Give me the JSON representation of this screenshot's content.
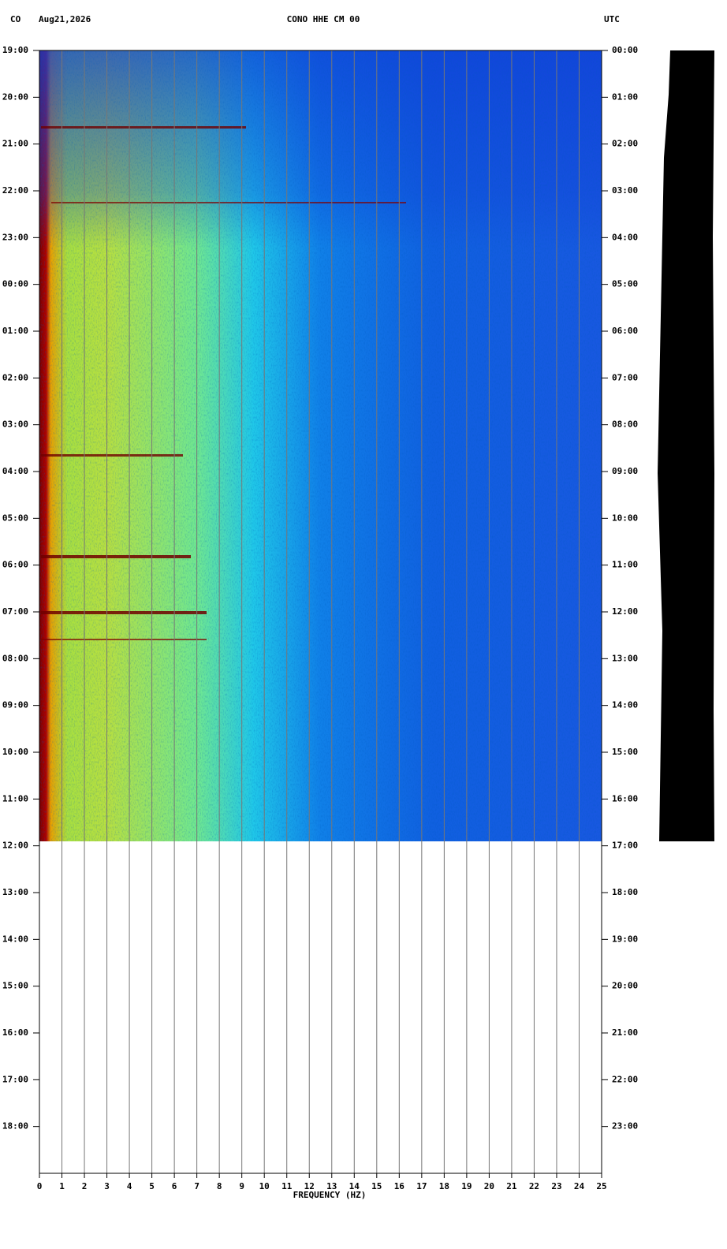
{
  "chart_data": {
    "type": "spectrogram",
    "network": "CO",
    "date": "Aug21,2026",
    "title": "CONO HHE CM 00",
    "timezone": "UTC",
    "xlabel": "FREQUENCY (HZ)",
    "xlim": [
      0,
      25
    ],
    "xticks": [
      0,
      1,
      2,
      3,
      4,
      5,
      6,
      7,
      8,
      9,
      10,
      11,
      12,
      13,
      14,
      15,
      16,
      17,
      18,
      19,
      20,
      21,
      22,
      23,
      24,
      25
    ],
    "ylim": [
      0,
      24
    ],
    "yticks": [
      {
        "value": 0,
        "label": "19:00"
      },
      {
        "value": 1,
        "label": "20:00"
      },
      {
        "value": 2,
        "label": "21:00"
      },
      {
        "value": 3,
        "label": "22:00"
      },
      {
        "value": 4,
        "label": "23:00"
      },
      {
        "value": 5,
        "label": "00:00"
      },
      {
        "value": 6,
        "label": "01:00"
      },
      {
        "value": 7,
        "label": "02:00"
      },
      {
        "value": 8,
        "label": "03:00"
      },
      {
        "value": 9,
        "label": "04:00"
      },
      {
        "value": 10,
        "label": "05:00"
      },
      {
        "value": 11,
        "label": "06:00"
      },
      {
        "value": 12,
        "label": "07:00"
      },
      {
        "value": 13,
        "label": "08:00"
      },
      {
        "value": 14,
        "label": "09:00"
      },
      {
        "value": 15,
        "label": "10:00"
      },
      {
        "value": 16,
        "label": "11:00"
      },
      {
        "value": 17,
        "label": "12:00"
      },
      {
        "value": 18,
        "label": "13:00"
      },
      {
        "value": 19,
        "label": "14:00"
      },
      {
        "value": 20,
        "label": "15:00"
      },
      {
        "value": 21,
        "label": "16:00"
      },
      {
        "value": 22,
        "label": "17:00"
      },
      {
        "value": 23,
        "label": "18:00"
      }
    ],
    "y2lim": [
      0,
      24
    ],
    "y2ticks": [
      {
        "value": 0,
        "label": "00:00"
      },
      {
        "value": 1,
        "label": "01:00"
      },
      {
        "value": 2,
        "label": "02:00"
      },
      {
        "value": 3,
        "label": "03:00"
      },
      {
        "value": 4,
        "label": "04:00"
      },
      {
        "value": 5,
        "label": "05:00"
      },
      {
        "value": 6,
        "label": "06:00"
      },
      {
        "value": 7,
        "label": "07:00"
      },
      {
        "value": 8,
        "label": "08:00"
      },
      {
        "value": 9,
        "label": "09:00"
      },
      {
        "value": 10,
        "label": "10:00"
      },
      {
        "value": 11,
        "label": "11:00"
      },
      {
        "value": 12,
        "label": "12:00"
      },
      {
        "value": 13,
        "label": "13:00"
      },
      {
        "value": 14,
        "label": "14:00"
      },
      {
        "value": 15,
        "label": "15:00"
      },
      {
        "value": 16,
        "label": "16:00"
      },
      {
        "value": 17,
        "label": "17:00"
      },
      {
        "value": 18,
        "label": "18:00"
      },
      {
        "value": 19,
        "label": "19:00"
      },
      {
        "value": 20,
        "label": "20:00"
      },
      {
        "value": 21,
        "label": "21:00"
      },
      {
        "value": 22,
        "label": "22:00"
      },
      {
        "value": 23,
        "label": "23:00"
      }
    ],
    "grid": true
  }
}
